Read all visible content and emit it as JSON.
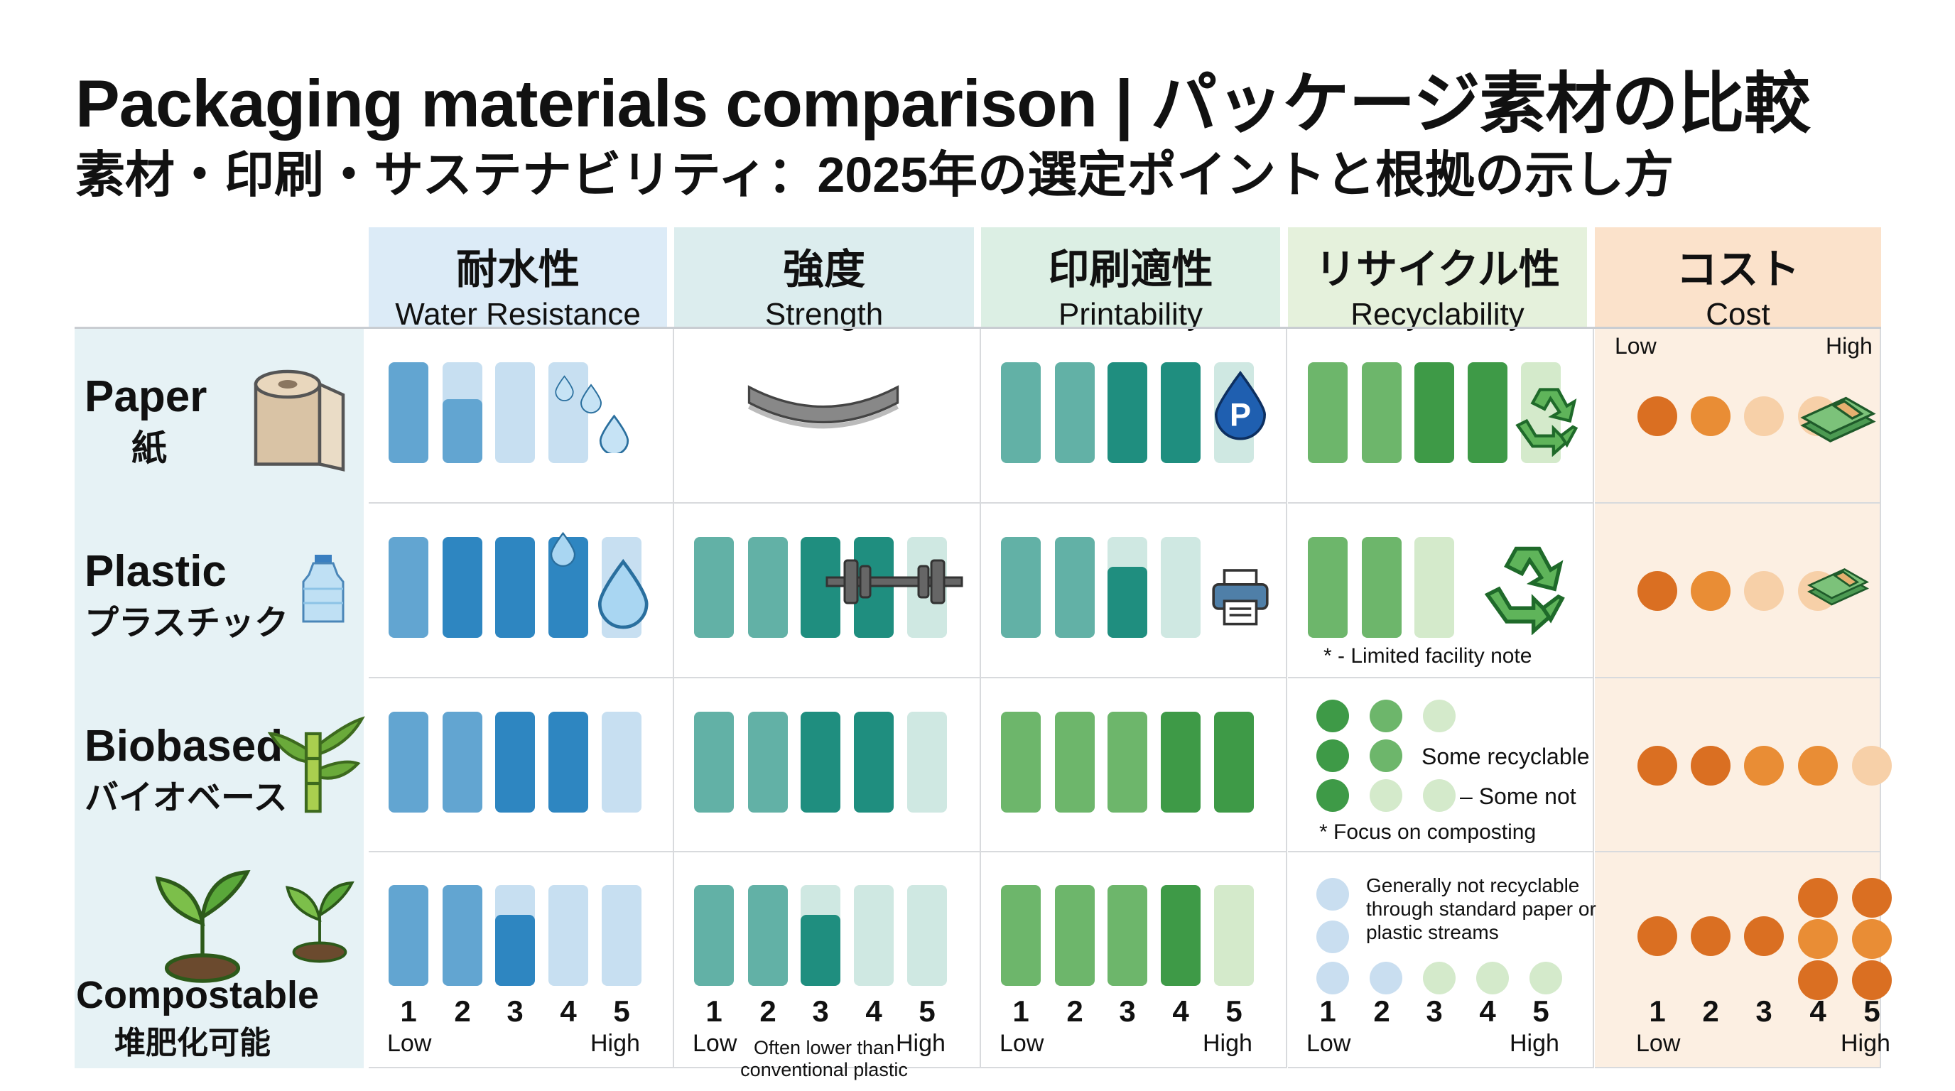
{
  "title": "Packaging materials comparison | パッケージ素材の比較",
  "subtitle": "素材・印刷・サステナビリティ：2025年の選定ポイントと根拠の示し方",
  "columns": [
    {
      "jp": "耐水性",
      "en": "Water Resistance",
      "bg": "#dcebf7",
      "palette": "blue"
    },
    {
      "jp": "強度",
      "en": "Strength",
      "bg": "#dcedee",
      "palette": "teal"
    },
    {
      "jp": "印刷適性",
      "en": "Printability",
      "bg": "#dcefe4",
      "palette": "teal"
    },
    {
      "jp": "リサイクル性",
      "en": "Recyclability",
      "bg": "#e5f1dc",
      "palette": "green"
    },
    {
      "jp": "コスト",
      "en": "Cost",
      "bg": "#fbe2cb",
      "palette": "orange"
    }
  ],
  "palettes": {
    "blue": {
      "d": "#2e86c1",
      "m": "#62a5d1",
      "l": "#c7dff1"
    },
    "teal": {
      "d": "#1f8e7f",
      "m": "#62b1a6",
      "l": "#cfe8e2"
    },
    "green": {
      "d": "#3e9a47",
      "m": "#6db66b",
      "l": "#d4eacb"
    },
    "orange": {
      "d": "#da6f22",
      "m": "#e98d35",
      "l": "#f7d0a8"
    }
  },
  "rows": [
    {
      "en": "Paper",
      "jp": "紙",
      "icon": "paper-roll-icon",
      "cells": [
        {
          "bars": [
            "m",
            "p",
            "l",
            "l",
            ""
          ],
          "icon": "water-drops-icon"
        },
        {
          "bars": [],
          "icon": "bent-board-icon"
        },
        {
          "bars": [
            "m",
            "m",
            "d",
            "d",
            "l"
          ],
          "icon": "ink-drop-p-icon",
          "palette": "teal"
        },
        {
          "bars": [
            "m",
            "m",
            "d",
            "d",
            "l"
          ],
          "icon": "recycle-icon"
        },
        {
          "dots": [
            "d",
            "m",
            "l",
            "l"
          ],
          "icon": "money-stack-icon"
        }
      ]
    },
    {
      "en": "Plastic",
      "jp": "プラスチック",
      "icon": "water-bottle-icon",
      "cells": [
        {
          "bars": [
            "m",
            "d",
            "d",
            "d",
            "l"
          ],
          "icon": "water-drop-icon"
        },
        {
          "bars": [
            "m",
            "m",
            "d",
            "d",
            "l"
          ],
          "icon": "dumbbell-icon"
        },
        {
          "bars": [
            "m",
            "m",
            "p",
            "l",
            ""
          ],
          "icon": "printer-icon",
          "palette": "teal"
        },
        {
          "bars": [
            "m",
            "m",
            "l"
          ],
          "icon": "recycle-icon",
          "note": "* - Limited facility note"
        },
        {
          "dots": [
            "d",
            "m",
            "l",
            "l"
          ],
          "icon": "money-stack-icon"
        }
      ]
    },
    {
      "en": "Biobased",
      "jp": "バイオベース",
      "icon": "bamboo-icon",
      "cells": [
        {
          "bars": [
            "m",
            "m",
            "d",
            "d",
            "l"
          ]
        },
        {
          "bars": [
            "m",
            "m",
            "d",
            "d",
            "l"
          ]
        },
        {
          "bars": [
            "m",
            "m",
            "m",
            "d",
            "d"
          ],
          "palette": "green"
        },
        {
          "dotgrid": true,
          "label1": "Some recyclable",
          "label2": "– Some not",
          "note": "* Focus on composting"
        },
        {
          "dots": [
            "d",
            "d",
            "m",
            "m",
            "l"
          ]
        }
      ]
    },
    {
      "en": "Compostable",
      "jp": "堆肥化可能",
      "icon": "plant-hand-icon",
      "cells": [
        {
          "bars": [
            "m",
            "m",
            "p",
            "l",
            "l"
          ]
        },
        {
          "bars": [
            "m",
            "m",
            "p",
            "l",
            "l"
          ],
          "note": "Often lower than conventional plastic"
        },
        {
          "bars": [
            "m",
            "m",
            "m",
            "d",
            "l"
          ],
          "palette": "green"
        },
        {
          "dotgrid2": true,
          "note": "Generally not recyclable through standard paper or plastic streams"
        },
        {
          "stack": [
            1,
            1,
            1,
            3,
            3
          ]
        }
      ]
    }
  ],
  "scale": {
    "numbers": [
      "1",
      "2",
      "3",
      "4",
      "5"
    ],
    "low": "Low",
    "high": "High"
  },
  "cost_scale": {
    "low": "Low",
    "high": "High"
  }
}
